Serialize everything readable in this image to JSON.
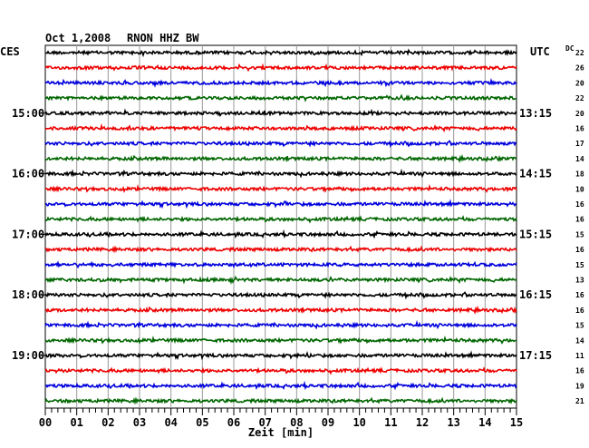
{
  "header": {
    "date": "Oct 1,2008",
    "station": "RNON HHZ BW"
  },
  "left_header": "CES",
  "right_header": "UTC",
  "dc_header": "DC",
  "chart_data": {
    "type": "seismogram",
    "xlabel": "Zeit [min]",
    "xlim": [
      0,
      15
    ],
    "x_ticks": [
      "00",
      "01",
      "02",
      "03",
      "04",
      "05",
      "06",
      "07",
      "08",
      "09",
      "10",
      "11",
      "12",
      "13",
      "14",
      "15"
    ],
    "trace_colors": [
      "#000000",
      "#ee0000",
      "#0000dd",
      "#006600"
    ],
    "rows": [
      {
        "left": "",
        "right": "",
        "dc": "22"
      },
      {
        "left": "",
        "right": "",
        "dc": "26"
      },
      {
        "left": "",
        "right": "",
        "dc": "20"
      },
      {
        "left": "",
        "right": "",
        "dc": "22"
      },
      {
        "left": "15:00",
        "right": "13:15",
        "dc": "20"
      },
      {
        "left": "",
        "right": "",
        "dc": "16"
      },
      {
        "left": "",
        "right": "",
        "dc": "17"
      },
      {
        "left": "",
        "right": "",
        "dc": "14"
      },
      {
        "left": "16:00",
        "right": "14:15",
        "dc": "18"
      },
      {
        "left": "",
        "right": "",
        "dc": "10"
      },
      {
        "left": "",
        "right": "",
        "dc": "16"
      },
      {
        "left": "",
        "right": "",
        "dc": "16"
      },
      {
        "left": "17:00",
        "right": "15:15",
        "dc": "15"
      },
      {
        "left": "",
        "right": "",
        "dc": "16"
      },
      {
        "left": "",
        "right": "",
        "dc": "15"
      },
      {
        "left": "",
        "right": "",
        "dc": "13"
      },
      {
        "left": "18:00",
        "right": "16:15",
        "dc": "16"
      },
      {
        "left": "",
        "right": "",
        "dc": "16"
      },
      {
        "left": "",
        "right": "",
        "dc": "15"
      },
      {
        "left": "",
        "right": "",
        "dc": "14"
      },
      {
        "left": "19:00",
        "right": "17:15",
        "dc": "11"
      },
      {
        "left": "",
        "right": "",
        "dc": "16"
      },
      {
        "left": "",
        "right": "",
        "dc": "19"
      },
      {
        "left": "",
        "right": "",
        "dc": "21"
      }
    ],
    "events": [
      {
        "row": 10,
        "minute": 7.6,
        "amplitude": 4.0
      }
    ]
  }
}
